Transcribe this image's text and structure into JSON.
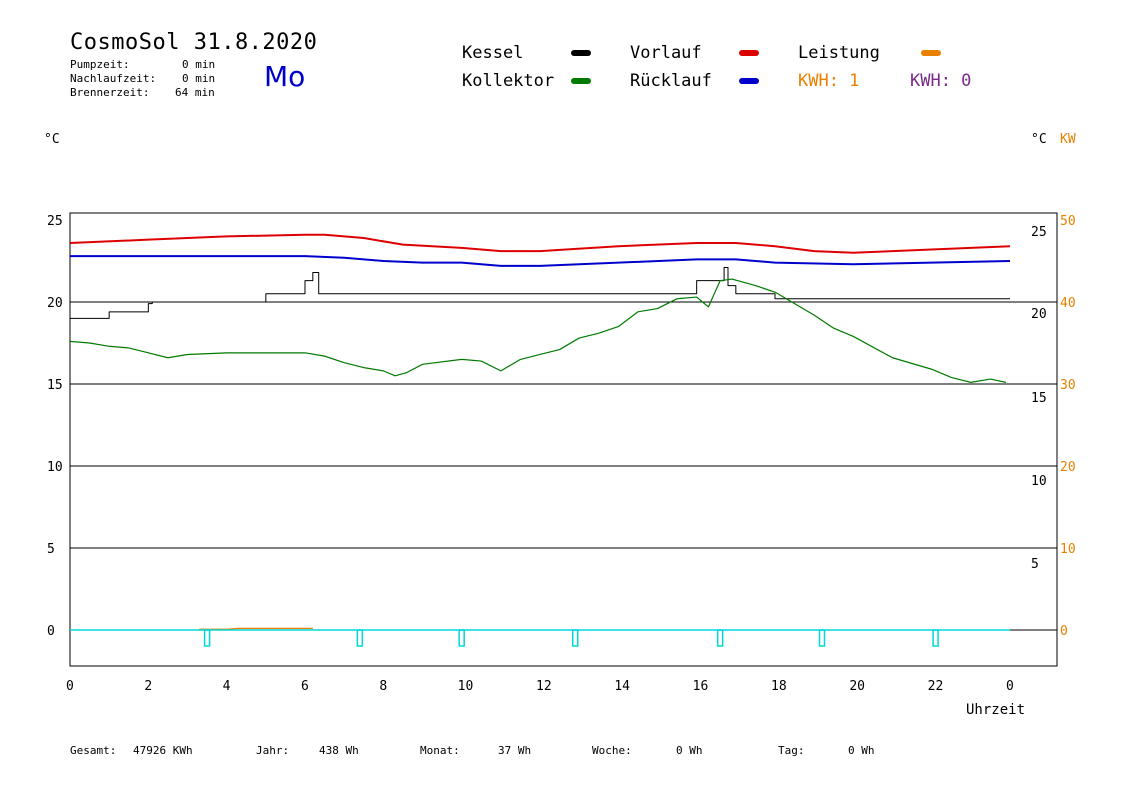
{
  "header": {
    "title": "CosmoSol 31.8.2020",
    "day": "Mo",
    "pump_label": "Pumpzeit:",
    "pump_value": "0 min",
    "nachlauf_label": "Nachlaufzeit:",
    "nachlauf_value": "0 min",
    "brenner_label": "Brennerzeit:",
    "brenner_value": "64 min"
  },
  "legend": {
    "kessel": "Kessel",
    "kollektor": "Kollektor",
    "vorlauf": "Vorlauf",
    "ruecklauf": "Rücklauf",
    "leistung": "Leistung",
    "kwh1": "KWH: 1",
    "kwh2": "KWH: 0"
  },
  "colors": {
    "kessel": "#000000",
    "kollektor": "#007a00",
    "vorlauf": "#dd0000",
    "ruecklauf": "#0000cc",
    "leistung": "#e98000",
    "kwh2": "#7a2a8a",
    "pump": "#00d8d8"
  },
  "units": {
    "left": "°C",
    "right_c": "°C",
    "right_kw": "KW"
  },
  "footer": {
    "gesamt_label": "Gesamt:",
    "gesamt_value": "47926 KWh",
    "jahr_label": "Jahr:",
    "jahr_value": "438 Wh",
    "monat_label": "Monat:",
    "monat_value": "37 Wh",
    "woche_label": "Woche:",
    "woche_value": "0 Wh",
    "tag_label": "Tag:",
    "tag_value": "0 Wh"
  },
  "chart_data": {
    "type": "line",
    "xlabel": "Uhrzeit",
    "xlim": [
      0,
      24
    ],
    "x_ticks": [
      "0",
      "2",
      "4",
      "6",
      "8",
      "10",
      "12",
      "14",
      "16",
      "18",
      "20",
      "22",
      "0"
    ],
    "ylim": [
      -2,
      25.5
    ],
    "y_ticks_left": [
      "25",
      "20",
      "15",
      "10",
      "5",
      "0"
    ],
    "y_ticks_right_c": [
      "25",
      "20",
      "15",
      "10",
      "5"
    ],
    "y_ticks_right_kw": [
      "50",
      "40",
      "30",
      "20",
      "10",
      "0"
    ],
    "grid": true,
    "series": [
      {
        "name": "Vorlauf",
        "x": [
          0,
          2,
          4,
          6,
          6.5,
          7.5,
          8.5,
          10,
          11,
          12,
          14,
          16,
          17,
          18,
          19,
          20,
          21,
          22,
          24
        ],
        "y": [
          23.6,
          23.8,
          24,
          24.1,
          24.1,
          23.9,
          23.5,
          23.3,
          23.1,
          23.1,
          23.4,
          23.6,
          23.6,
          23.4,
          23.1,
          23,
          23.1,
          23.2,
          23.4
        ]
      },
      {
        "name": "Rücklauf",
        "x": [
          0,
          2,
          4,
          6,
          7,
          8,
          9,
          10,
          11,
          12,
          14,
          16,
          17,
          18,
          20,
          22,
          24
        ],
        "y": [
          22.8,
          22.8,
          22.8,
          22.8,
          22.7,
          22.5,
          22.4,
          22.4,
          22.2,
          22.2,
          22.4,
          22.6,
          22.6,
          22.4,
          22.3,
          22.4,
          22.5
        ]
      },
      {
        "name": "Kessel",
        "x": [
          0,
          1,
          2,
          2.1,
          4.3,
          5,
          6,
          6.2,
          6.3,
          6.35,
          10,
          12,
          15.1,
          16,
          16.7,
          16.8,
          17,
          17.5,
          18,
          20,
          24
        ],
        "y": [
          19,
          19.4,
          19.9,
          20,
          20,
          20.5,
          21.3,
          21.8,
          21.8,
          20.5,
          20.5,
          20.5,
          20.5,
          21.3,
          22.1,
          21,
          20.5,
          20.5,
          20.2,
          20.2,
          20.2
        ]
      },
      {
        "name": "Kollektor",
        "x": [
          0,
          0.5,
          1,
          1.5,
          2,
          2.5,
          3,
          4,
          5,
          6,
          6.5,
          7,
          7.5,
          8,
          8.3,
          8.6,
          9,
          10,
          10.5,
          11,
          11.5,
          12,
          12.5,
          13,
          13.5,
          14,
          14.5,
          15,
          15.5,
          16,
          16.3,
          16.6,
          16.9,
          17.2,
          17.5,
          18,
          18.5,
          19,
          19.5,
          20,
          21,
          22,
          22.5,
          23,
          23.5,
          23.9
        ],
        "y": [
          17.6,
          17.5,
          17.3,
          17.2,
          16.9,
          16.6,
          16.8,
          16.9,
          16.9,
          16.9,
          16.7,
          16.3,
          16,
          15.8,
          15.5,
          15.7,
          16.2,
          16.5,
          16.4,
          15.8,
          16.5,
          16.8,
          17.1,
          17.8,
          18.1,
          18.5,
          19.4,
          19.6,
          20.2,
          20.3,
          19.7,
          21.3,
          21.4,
          21.2,
          21,
          20.6,
          19.9,
          19.2,
          18.4,
          17.9,
          16.6,
          15.9,
          15.4,
          15.1,
          15.3,
          15.1
        ]
      },
      {
        "name": "Leistung",
        "x": [
          3.3,
          4,
          4.3,
          5,
          6.2
        ],
        "y": [
          0.05,
          0.05,
          0.1,
          0.1,
          0.1
        ]
      }
    ],
    "pump_markers_h": [
      3.5,
      7.4,
      10,
      12.9,
      16.6,
      19.2,
      22.1
    ]
  }
}
